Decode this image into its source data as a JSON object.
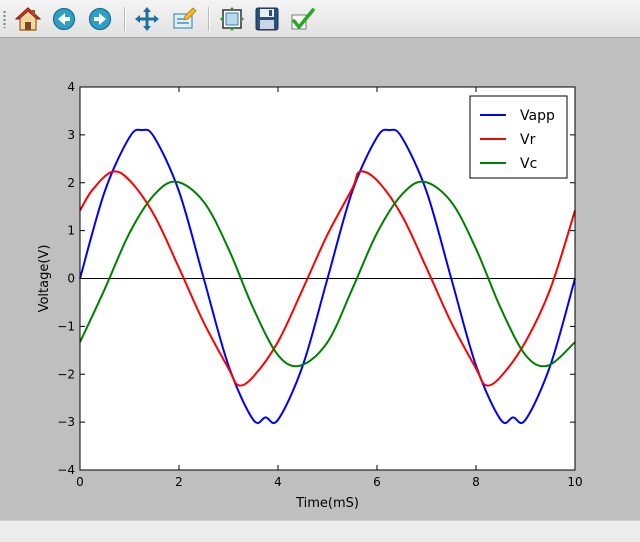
{
  "toolbar": {
    "buttons": [
      {
        "name": "home-icon",
        "tooltip": "Home"
      },
      {
        "name": "back-icon",
        "tooltip": "Back"
      },
      {
        "name": "forward-icon",
        "tooltip": "Forward"
      },
      {
        "name": "pan-icon",
        "tooltip": "Pan"
      },
      {
        "name": "zoom-icon",
        "tooltip": "Zoom"
      },
      {
        "name": "subplots-icon",
        "tooltip": "Configure subplots"
      },
      {
        "name": "save-icon",
        "tooltip": "Save"
      },
      {
        "name": "edit-curves-icon",
        "tooltip": "Edit curves"
      }
    ]
  },
  "chart_data": {
    "type": "line",
    "title": "",
    "xlabel": "Time(mS)",
    "ylabel": "Voltage(V)",
    "xlim": [
      0,
      10
    ],
    "ylim": [
      -4,
      4
    ],
    "xticks": [
      "0",
      "2",
      "4",
      "6",
      "8",
      "10"
    ],
    "yticks": [
      "4",
      "3",
      "2",
      "1",
      "0",
      "−1",
      "−2",
      "−3",
      "−4"
    ],
    "grid": false,
    "legend_position": "top-right",
    "reference_line": {
      "y": 0,
      "color": "#000000"
    },
    "series": [
      {
        "name": "Vapp",
        "color": "#0000ff",
        "x": [
          0,
          0.5,
          1.0,
          1.25,
          1.5,
          2.0,
          2.5,
          3.0,
          3.5,
          3.75,
          4.0,
          4.5,
          5.0,
          5.5,
          6.0,
          6.25,
          6.5,
          7.0,
          7.5,
          8.0,
          8.5,
          8.75,
          9.0,
          9.5,
          10.0
        ],
        "y": [
          0,
          1.82,
          2.95,
          3.1,
          2.95,
          1.82,
          0,
          -1.82,
          -2.95,
          -2.9,
          -2.95,
          -1.82,
          0,
          1.82,
          2.95,
          3.1,
          2.95,
          1.82,
          0,
          -1.82,
          -2.95,
          -2.9,
          -2.95,
          -1.82,
          0
        ]
      },
      {
        "name": "Vr",
        "color": "#ff0000",
        "x": [
          0,
          0.25,
          0.65,
          1.0,
          1.5,
          2.0,
          2.5,
          3.0,
          3.2,
          3.5,
          4.0,
          4.5,
          5.0,
          5.5,
          5.65,
          6.0,
          6.5,
          7.0,
          7.5,
          8.0,
          8.2,
          8.5,
          9.0,
          9.5,
          10.0
        ],
        "y": [
          1.42,
          1.85,
          2.23,
          2.05,
          1.32,
          0.22,
          -0.92,
          -1.88,
          -2.23,
          -2.05,
          -1.32,
          -0.22,
          0.92,
          1.88,
          2.23,
          2.05,
          1.32,
          0.22,
          -0.92,
          -1.88,
          -2.23,
          -2.05,
          -1.32,
          -0.22,
          1.42
        ]
      },
      {
        "name": "Vc",
        "color": "#008000",
        "x": [
          0,
          0.5,
          1.0,
          1.5,
          1.95,
          2.5,
          3.0,
          3.5,
          4.0,
          4.45,
          5.0,
          5.5,
          6.0,
          6.5,
          6.95,
          7.5,
          8.0,
          8.5,
          9.0,
          9.45,
          10.0
        ],
        "y": [
          -1.33,
          -0.22,
          0.95,
          1.75,
          2.02,
          1.6,
          0.62,
          -0.62,
          -1.6,
          -1.82,
          -1.33,
          -0.22,
          0.95,
          1.75,
          2.02,
          1.6,
          0.62,
          -0.62,
          -1.6,
          -1.82,
          -1.33
        ]
      }
    ]
  }
}
